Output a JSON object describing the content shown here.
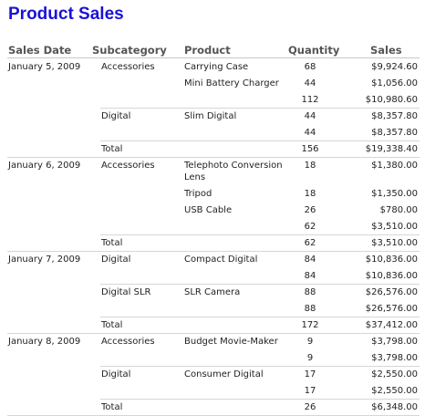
{
  "report": {
    "title": "Product Sales",
    "columns": {
      "date": "Sales Date",
      "subcategory": "Subcategory",
      "product": "Product",
      "quantity": "Quantity",
      "sales": "Sales"
    }
  },
  "rows": [
    {
      "type": "data",
      "date": "January 5, 2009",
      "sub": "Accessories",
      "product": "Carrying Case",
      "qty": "68",
      "sales": "$9,924.60"
    },
    {
      "type": "data",
      "date": "",
      "sub": "",
      "product": "Mini Battery Charger",
      "qty": "44",
      "sales": "$1,056.00"
    },
    {
      "type": "subtotal",
      "date": "",
      "sub": "",
      "product": "",
      "qty": "112",
      "sales": "$10,980.60"
    },
    {
      "type": "data",
      "date": "",
      "sub": "Digital",
      "product": "Slim Digital",
      "qty": "44",
      "sales": "$8,357.80"
    },
    {
      "type": "subtotal",
      "date": "",
      "sub": "",
      "product": "",
      "qty": "44",
      "sales": "$8,357.80"
    },
    {
      "type": "total",
      "date": "",
      "sub": "Total",
      "product": "",
      "qty": "156",
      "sales": "$19,338.40"
    },
    {
      "type": "data",
      "date": "January 6, 2009",
      "sub": "Accessories",
      "product": "Telephoto Conversion Lens",
      "qty": "18",
      "sales": "$1,380.00",
      "tall": true
    },
    {
      "type": "data",
      "date": "",
      "sub": "",
      "product": "Tripod",
      "qty": "18",
      "sales": "$1,350.00"
    },
    {
      "type": "data",
      "date": "",
      "sub": "",
      "product": "USB Cable",
      "qty": "26",
      "sales": "$780.00"
    },
    {
      "type": "subtotal",
      "date": "",
      "sub": "",
      "product": "",
      "qty": "62",
      "sales": "$3,510.00"
    },
    {
      "type": "total",
      "date": "",
      "sub": "Total",
      "product": "",
      "qty": "62",
      "sales": "$3,510.00"
    },
    {
      "type": "data",
      "date": "January 7, 2009",
      "sub": "Digital",
      "product": "Compact Digital",
      "qty": "84",
      "sales": "$10,836.00"
    },
    {
      "type": "subtotal",
      "date": "",
      "sub": "",
      "product": "",
      "qty": "84",
      "sales": "$10,836.00"
    },
    {
      "type": "data",
      "date": "",
      "sub": "Digital SLR",
      "product": "SLR Camera",
      "qty": "88",
      "sales": "$26,576.00"
    },
    {
      "type": "subtotal",
      "date": "",
      "sub": "",
      "product": "",
      "qty": "88",
      "sales": "$26,576.00"
    },
    {
      "type": "total",
      "date": "",
      "sub": "Total",
      "product": "",
      "qty": "172",
      "sales": "$37,412.00"
    },
    {
      "type": "data",
      "date": "January 8, 2009",
      "sub": "Accessories",
      "product": "Budget Movie-Maker",
      "qty": "9",
      "sales": "$3,798.00"
    },
    {
      "type": "subtotal",
      "date": "",
      "sub": "",
      "product": "",
      "qty": "9",
      "sales": "$3,798.00"
    },
    {
      "type": "data",
      "date": "",
      "sub": "Digital",
      "product": "Consumer Digital",
      "qty": "17",
      "sales": "$2,550.00"
    },
    {
      "type": "subtotal",
      "date": "",
      "sub": "",
      "product": "",
      "qty": "17",
      "sales": "$2,550.00"
    },
    {
      "type": "total",
      "date": "",
      "sub": "Total",
      "product": "",
      "qty": "26",
      "sales": "$6,348.00"
    }
  ],
  "colors": {
    "title": "#1a12d6",
    "header_text": "#555555",
    "rule": "#d6d6d6"
  }
}
